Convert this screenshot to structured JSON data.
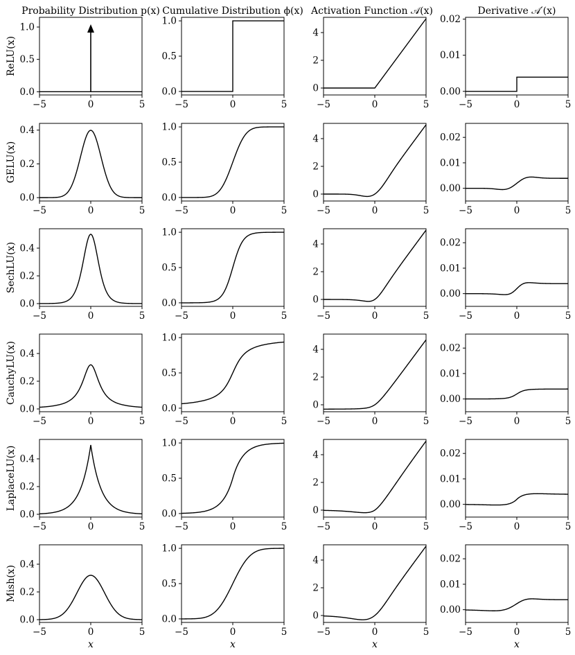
{
  "chart_data": {
    "type": "line",
    "column_titles": [
      "Probability Distribution p(x)",
      "Cumulative Distribution ϕ(x)",
      "Activation Function 𝒜(x)",
      "Derivative 𝒜′(x)"
    ],
    "row_labels": [
      "ReLU(x)",
      "GELU(x)",
      "SechLU(x)",
      "CauchyLU(x)",
      "LaplaceLU(x)",
      "Mish(x)"
    ],
    "xlabel": "x",
    "x_range": [
      -5,
      5
    ],
    "x_ticks": [
      -5,
      0,
      5
    ],
    "series_color": "#000000",
    "panels": [
      [
        {
          "kind": "pdf",
          "dist": "relu",
          "ylim": [
            -0.05,
            1.15
          ],
          "yticks": [
            0,
            0.5,
            1
          ],
          "ytick_labels": [
            "0.0",
            "0.5",
            "1.0"
          ],
          "note": "Dirac delta at x = 0 (arrow)"
        },
        {
          "kind": "cdf",
          "dist": "relu",
          "ylim": [
            -0.05,
            1.05
          ],
          "yticks": [
            0,
            0.5,
            1
          ],
          "ytick_labels": [
            "0.0",
            "0.5",
            "1.0"
          ]
        },
        {
          "kind": "act",
          "dist": "relu",
          "ylim": [
            -0.5,
            5.1
          ],
          "yticks": [
            0,
            2,
            4
          ],
          "ytick_labels": [
            "0",
            "2",
            "4"
          ]
        },
        {
          "kind": "der",
          "dist": "relu",
          "ylim": [
            -0.001,
            0.0205
          ],
          "yticks": [
            0,
            0.01,
            0.02
          ],
          "ytick_labels": [
            "0.00",
            "0.01",
            "0.02"
          ]
        }
      ],
      [
        {
          "kind": "pdf",
          "dist": "gelu",
          "ylim": [
            -0.02,
            0.44
          ],
          "yticks": [
            0,
            0.2,
            0.4
          ],
          "ytick_labels": [
            "0.0",
            "0.2",
            "0.4"
          ]
        },
        {
          "kind": "cdf",
          "dist": "gelu",
          "ylim": [
            -0.05,
            1.05
          ],
          "yticks": [
            0,
            0.5,
            1
          ],
          "ytick_labels": [
            "0.0",
            "0.5",
            "1.0"
          ]
        },
        {
          "kind": "act",
          "dist": "gelu",
          "ylim": [
            -0.5,
            5.1
          ],
          "yticks": [
            0,
            2,
            4
          ],
          "ytick_labels": [
            "0",
            "2",
            "4"
          ]
        },
        {
          "kind": "der",
          "dist": "gelu",
          "ylim": [
            -0.005,
            0.0255
          ],
          "yticks": [
            0,
            0.01,
            0.02
          ],
          "ytick_labels": [
            "0.00",
            "0.01",
            "0.02"
          ]
        }
      ],
      [
        {
          "kind": "pdf",
          "dist": "sech",
          "ylim": [
            -0.02,
            0.54
          ],
          "yticks": [
            0,
            0.2,
            0.4
          ],
          "ytick_labels": [
            "0.0",
            "0.2",
            "0.4"
          ]
        },
        {
          "kind": "cdf",
          "dist": "sech",
          "ylim": [
            -0.05,
            1.05
          ],
          "yticks": [
            0,
            0.5,
            1
          ],
          "ytick_labels": [
            "0.0",
            "0.5",
            "1.0"
          ]
        },
        {
          "kind": "act",
          "dist": "sech",
          "ylim": [
            -0.5,
            5.1
          ],
          "yticks": [
            0,
            2,
            4
          ],
          "ytick_labels": [
            "0",
            "2",
            "4"
          ]
        },
        {
          "kind": "der",
          "dist": "sech",
          "ylim": [
            -0.005,
            0.0255
          ],
          "yticks": [
            0,
            0.01,
            0.02
          ],
          "ytick_labels": [
            "0.00",
            "0.01",
            "0.02"
          ]
        }
      ],
      [
        {
          "kind": "pdf",
          "dist": "cauchy",
          "ylim": [
            -0.02,
            0.54
          ],
          "yticks": [
            0,
            0.2,
            0.4
          ],
          "ytick_labels": [
            "0.0",
            "0.2",
            "0.4"
          ]
        },
        {
          "kind": "cdf",
          "dist": "cauchy",
          "ylim": [
            -0.05,
            1.05
          ],
          "yticks": [
            0,
            0.5,
            1
          ],
          "ytick_labels": [
            "0.0",
            "0.5",
            "1.0"
          ]
        },
        {
          "kind": "act",
          "dist": "cauchy",
          "ylim": [
            -0.5,
            5.1
          ],
          "yticks": [
            0,
            2,
            4
          ],
          "ytick_labels": [
            "0",
            "2",
            "4"
          ]
        },
        {
          "kind": "der",
          "dist": "cauchy",
          "ylim": [
            -0.005,
            0.0255
          ],
          "yticks": [
            0,
            0.01,
            0.02
          ],
          "ytick_labels": [
            "0.00",
            "0.01",
            "0.02"
          ]
        }
      ],
      [
        {
          "kind": "pdf",
          "dist": "laplace",
          "ylim": [
            -0.02,
            0.54
          ],
          "yticks": [
            0,
            0.2,
            0.4
          ],
          "ytick_labels": [
            "0.0",
            "0.2",
            "0.4"
          ]
        },
        {
          "kind": "cdf",
          "dist": "laplace",
          "ylim": [
            -0.05,
            1.05
          ],
          "yticks": [
            0,
            0.5,
            1
          ],
          "ytick_labels": [
            "0.0",
            "0.5",
            "1.0"
          ]
        },
        {
          "kind": "act",
          "dist": "laplace",
          "ylim": [
            -0.5,
            5.1
          ],
          "yticks": [
            0,
            2,
            4
          ],
          "ytick_labels": [
            "0",
            "2",
            "4"
          ]
        },
        {
          "kind": "der",
          "dist": "laplace",
          "ylim": [
            -0.005,
            0.0255
          ],
          "yticks": [
            0,
            0.01,
            0.02
          ],
          "ytick_labels": [
            "0.00",
            "0.01",
            "0.02"
          ]
        }
      ],
      [
        {
          "kind": "pdf",
          "dist": "mish",
          "ylim": [
            -0.02,
            0.54
          ],
          "yticks": [
            0,
            0.2,
            0.4
          ],
          "ytick_labels": [
            "0.0",
            "0.2",
            "0.4"
          ]
        },
        {
          "kind": "cdf",
          "dist": "mish",
          "ylim": [
            -0.05,
            1.05
          ],
          "yticks": [
            0,
            0.5,
            1
          ],
          "ytick_labels": [
            "0.0",
            "0.5",
            "1.0"
          ]
        },
        {
          "kind": "act",
          "dist": "mish",
          "ylim": [
            -0.5,
            5.1
          ],
          "yticks": [
            0,
            2,
            4
          ],
          "ytick_labels": [
            "0",
            "2",
            "4"
          ]
        },
        {
          "kind": "der",
          "dist": "mish",
          "ylim": [
            -0.005,
            0.0255
          ],
          "yticks": [
            0,
            0.01,
            0.02
          ],
          "ytick_labels": [
            "0.00",
            "0.01",
            "0.02"
          ]
        }
      ]
    ]
  }
}
